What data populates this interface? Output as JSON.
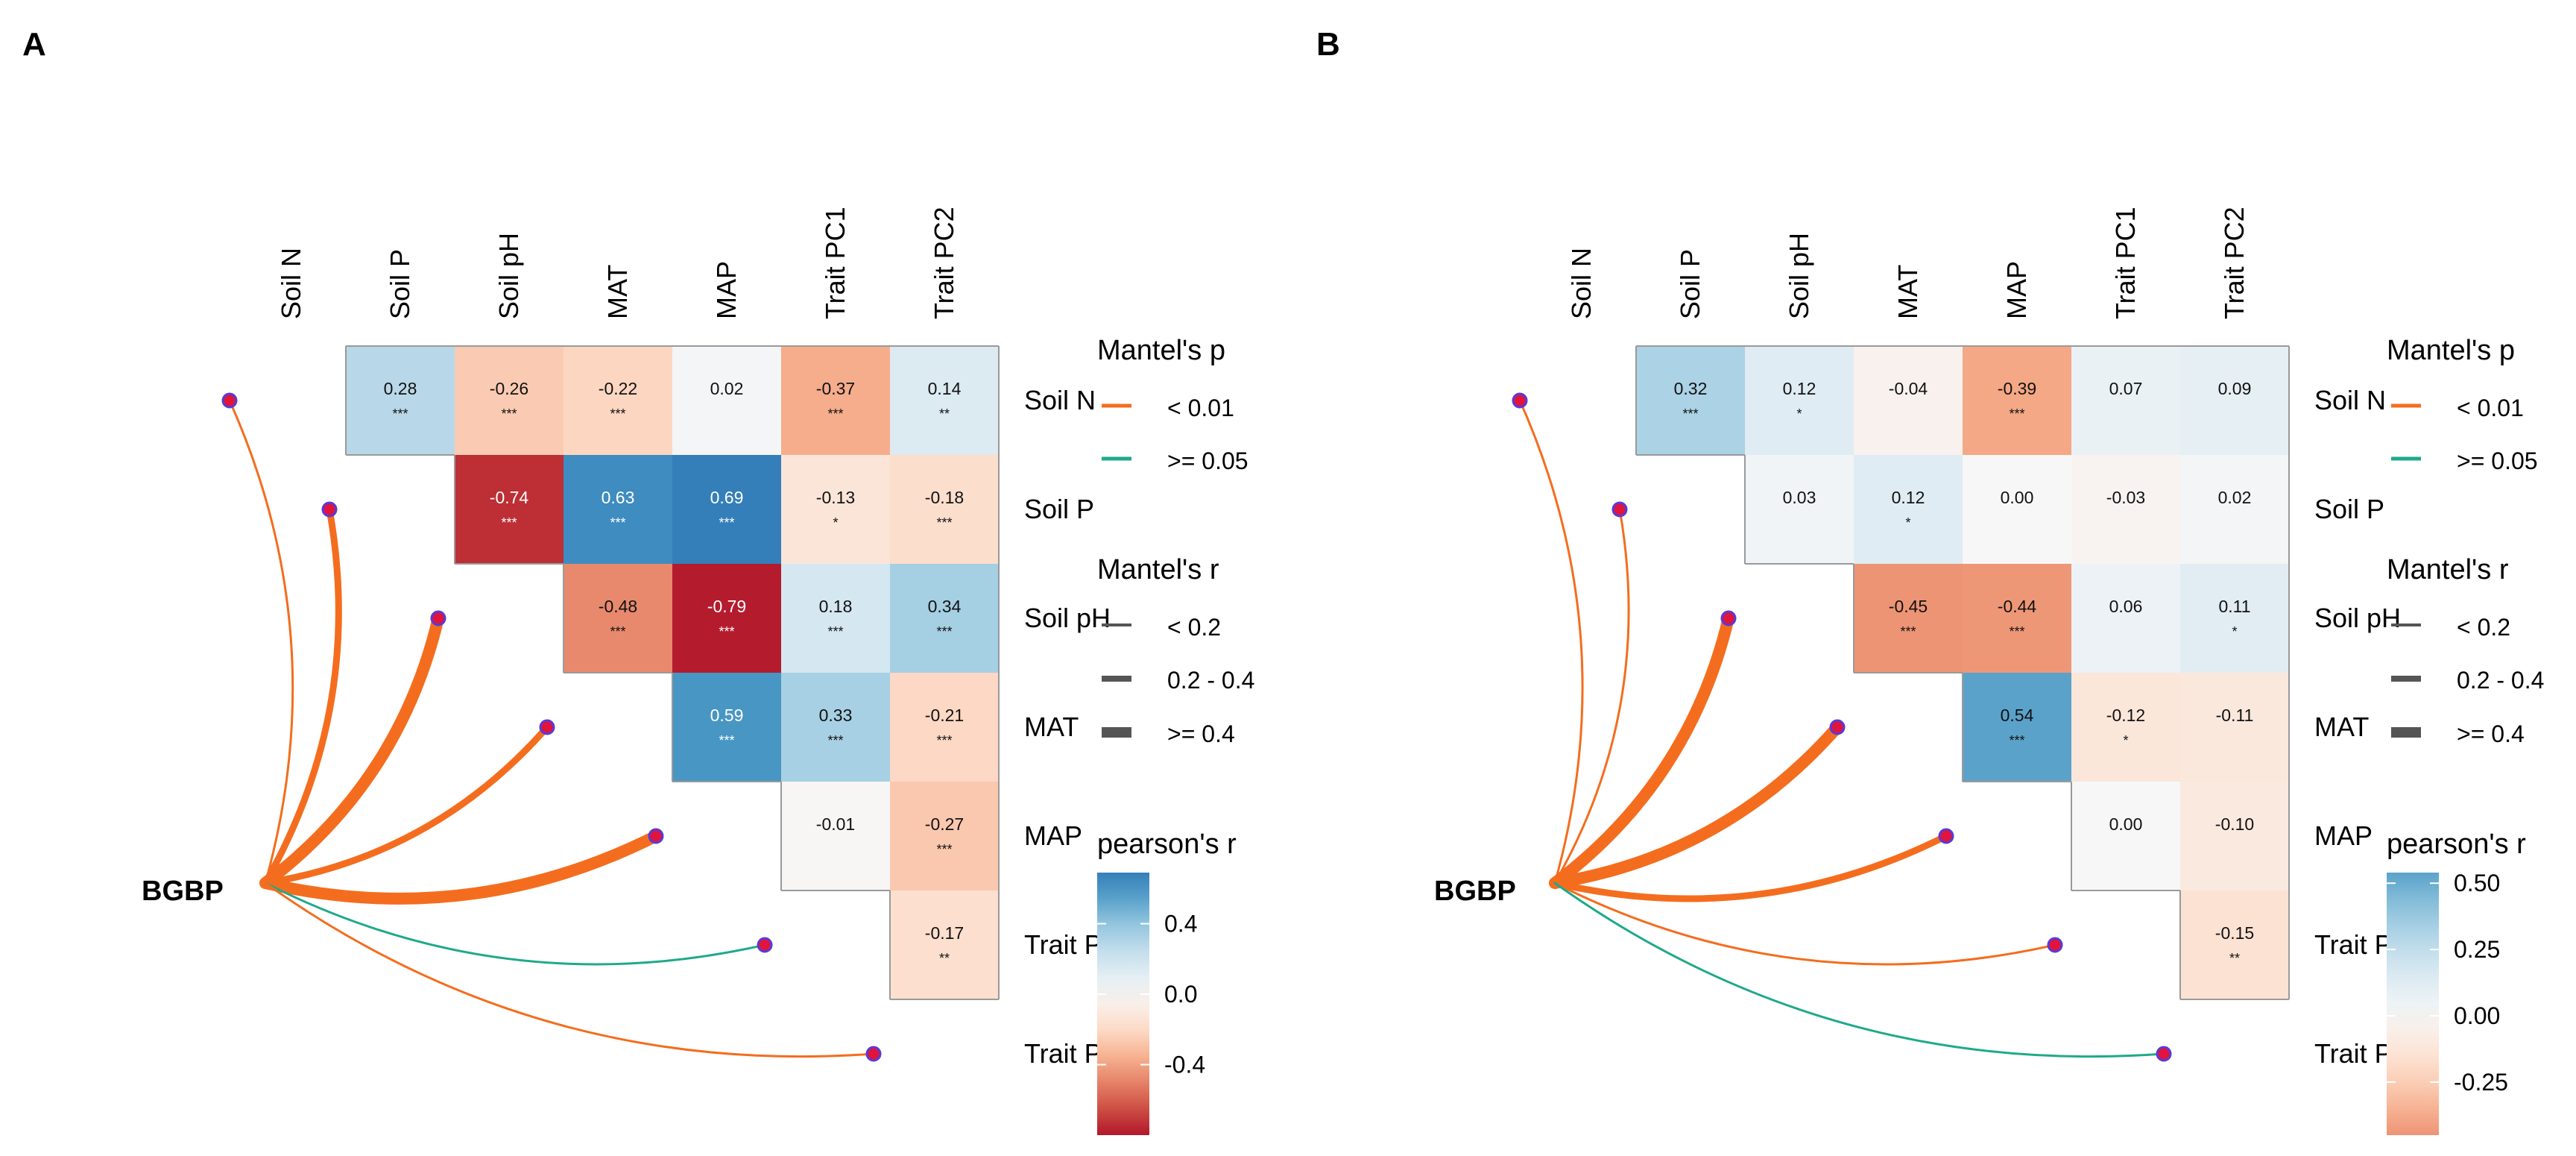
{
  "colors": {
    "strong_link": "#f46d1e",
    "weak_link": "#1fa98a",
    "node_fill": "#e0143c",
    "node_stroke": "#5a3ad6",
    "cell_border": "#9a9a9a",
    "text": "#000000",
    "scale": [
      "#67001f",
      "#b2182b",
      "#d6604d",
      "#f4a582",
      "#fddbc7",
      "#f7f7f7",
      "#d1e5f0",
      "#92c5de",
      "#4393c3",
      "#2166ac",
      "#053061"
    ]
  },
  "chart_data": [
    {
      "type": "heatmap",
      "panel_label": "A",
      "variables": [
        "Soil N",
        "Soil P",
        "Soil pH",
        "MAT",
        "MAP",
        "Trait PC1",
        "Trait PC2"
      ],
      "response": "BGBP",
      "cells": [
        {
          "row": 0,
          "col": 1,
          "r": 0.28,
          "sig": "***"
        },
        {
          "row": 0,
          "col": 2,
          "r": -0.26,
          "sig": "***"
        },
        {
          "row": 0,
          "col": 3,
          "r": -0.22,
          "sig": "***"
        },
        {
          "row": 0,
          "col": 4,
          "r": 0.02,
          "sig": ""
        },
        {
          "row": 0,
          "col": 5,
          "r": -0.37,
          "sig": "***"
        },
        {
          "row": 0,
          "col": 6,
          "r": 0.14,
          "sig": "**"
        },
        {
          "row": 1,
          "col": 2,
          "r": -0.74,
          "sig": "***"
        },
        {
          "row": 1,
          "col": 3,
          "r": 0.63,
          "sig": "***"
        },
        {
          "row": 1,
          "col": 4,
          "r": 0.69,
          "sig": "***"
        },
        {
          "row": 1,
          "col": 5,
          "r": -0.13,
          "sig": "*"
        },
        {
          "row": 1,
          "col": 6,
          "r": -0.18,
          "sig": "***"
        },
        {
          "row": 2,
          "col": 3,
          "r": -0.48,
          "sig": "***"
        },
        {
          "row": 2,
          "col": 4,
          "r": -0.79,
          "sig": "***"
        },
        {
          "row": 2,
          "col": 5,
          "r": 0.18,
          "sig": "***"
        },
        {
          "row": 2,
          "col": 6,
          "r": 0.34,
          "sig": "***"
        },
        {
          "row": 3,
          "col": 4,
          "r": 0.59,
          "sig": "***"
        },
        {
          "row": 3,
          "col": 5,
          "r": 0.33,
          "sig": "***"
        },
        {
          "row": 3,
          "col": 6,
          "r": -0.21,
          "sig": "***"
        },
        {
          "row": 4,
          "col": 5,
          "r": -0.01,
          "sig": ""
        },
        {
          "row": 4,
          "col": 6,
          "r": -0.27,
          "sig": "***"
        },
        {
          "row": 5,
          "col": 6,
          "r": -0.17,
          "sig": "**"
        }
      ],
      "mantel_links": [
        {
          "to": 0,
          "p": "< 0.01",
          "r_class": "< 0.2"
        },
        {
          "to": 1,
          "p": "< 0.01",
          "r_class": "0.2 - 0.4"
        },
        {
          "to": 2,
          "p": "< 0.01",
          "r_class": ">= 0.4"
        },
        {
          "to": 3,
          "p": "< 0.01",
          "r_class": "0.2 - 0.4"
        },
        {
          "to": 4,
          "p": "< 0.01",
          "r_class": ">= 0.4"
        },
        {
          "to": 5,
          "p": ">= 0.05",
          "r_class": "< 0.2"
        },
        {
          "to": 6,
          "p": "< 0.01",
          "r_class": "< 0.2"
        }
      ],
      "legend": {
        "p_title": "Mantel's p",
        "p_items": [
          "< 0.01",
          ">= 0.05"
        ],
        "r_title": "Mantel's r",
        "r_items": [
          "< 0.2",
          "0.2 - 0.4",
          ">= 0.4"
        ],
        "color_title": "pearson's r",
        "colorbar_range": [
          -0.8,
          0.69
        ],
        "colorbar_ticks": [
          0.4,
          0.0,
          -0.4
        ],
        "colorbar_tick_labels": [
          "0.4",
          "0.0",
          "-0.4"
        ]
      }
    },
    {
      "type": "heatmap",
      "panel_label": "B",
      "variables": [
        "Soil N",
        "Soil P",
        "Soil pH",
        "MAT",
        "MAP",
        "Trait PC1",
        "Trait PC2"
      ],
      "response": "BGBP",
      "cells": [
        {
          "row": 0,
          "col": 1,
          "r": 0.32,
          "sig": "***"
        },
        {
          "row": 0,
          "col": 2,
          "r": 0.12,
          "sig": "*"
        },
        {
          "row": 0,
          "col": 3,
          "r": -0.04,
          "sig": ""
        },
        {
          "row": 0,
          "col": 4,
          "r": -0.39,
          "sig": "***"
        },
        {
          "row": 0,
          "col": 5,
          "r": 0.07,
          "sig": ""
        },
        {
          "row": 0,
          "col": 6,
          "r": 0.09,
          "sig": ""
        },
        {
          "row": 1,
          "col": 2,
          "r": 0.03,
          "sig": ""
        },
        {
          "row": 1,
          "col": 3,
          "r": 0.12,
          "sig": "*"
        },
        {
          "row": 1,
          "col": 4,
          "r": 0.0,
          "sig": ""
        },
        {
          "row": 1,
          "col": 5,
          "r": -0.03,
          "sig": ""
        },
        {
          "row": 1,
          "col": 6,
          "r": 0.02,
          "sig": ""
        },
        {
          "row": 2,
          "col": 3,
          "r": -0.45,
          "sig": "***"
        },
        {
          "row": 2,
          "col": 4,
          "r": -0.44,
          "sig": "***"
        },
        {
          "row": 2,
          "col": 5,
          "r": 0.06,
          "sig": ""
        },
        {
          "row": 2,
          "col": 6,
          "r": 0.11,
          "sig": "*"
        },
        {
          "row": 3,
          "col": 4,
          "r": 0.54,
          "sig": "***"
        },
        {
          "row": 3,
          "col": 5,
          "r": -0.12,
          "sig": "*"
        },
        {
          "row": 3,
          "col": 6,
          "r": -0.11,
          "sig": ""
        },
        {
          "row": 4,
          "col": 5,
          "r": 0.0,
          "sig": ""
        },
        {
          "row": 4,
          "col": 6,
          "r": -0.1,
          "sig": ""
        },
        {
          "row": 5,
          "col": 6,
          "r": -0.15,
          "sig": "**"
        }
      ],
      "mantel_links": [
        {
          "to": 0,
          "p": "< 0.01",
          "r_class": "< 0.2"
        },
        {
          "to": 1,
          "p": "< 0.01",
          "r_class": "< 0.2"
        },
        {
          "to": 2,
          "p": "< 0.01",
          "r_class": ">= 0.4"
        },
        {
          "to": 3,
          "p": "< 0.01",
          "r_class": ">= 0.4"
        },
        {
          "to": 4,
          "p": "< 0.01",
          "r_class": "0.2 - 0.4"
        },
        {
          "to": 5,
          "p": "< 0.01",
          "r_class": "< 0.2"
        },
        {
          "to": 6,
          "p": ">= 0.05",
          "r_class": "< 0.2"
        }
      ],
      "legend": {
        "p_title": "Mantel's p",
        "p_items": [
          "< 0.01",
          ">= 0.05"
        ],
        "r_title": "Mantel's r",
        "r_items": [
          "< 0.2",
          "0.2 - 0.4",
          ">= 0.4"
        ],
        "color_title": "pearson's r",
        "colorbar_range": [
          -0.45,
          0.54
        ],
        "colorbar_ticks": [
          0.5,
          0.25,
          0.0,
          -0.25
        ],
        "colorbar_tick_labels": [
          "0.50",
          "0.25",
          "0.00",
          "-0.25"
        ]
      }
    }
  ]
}
